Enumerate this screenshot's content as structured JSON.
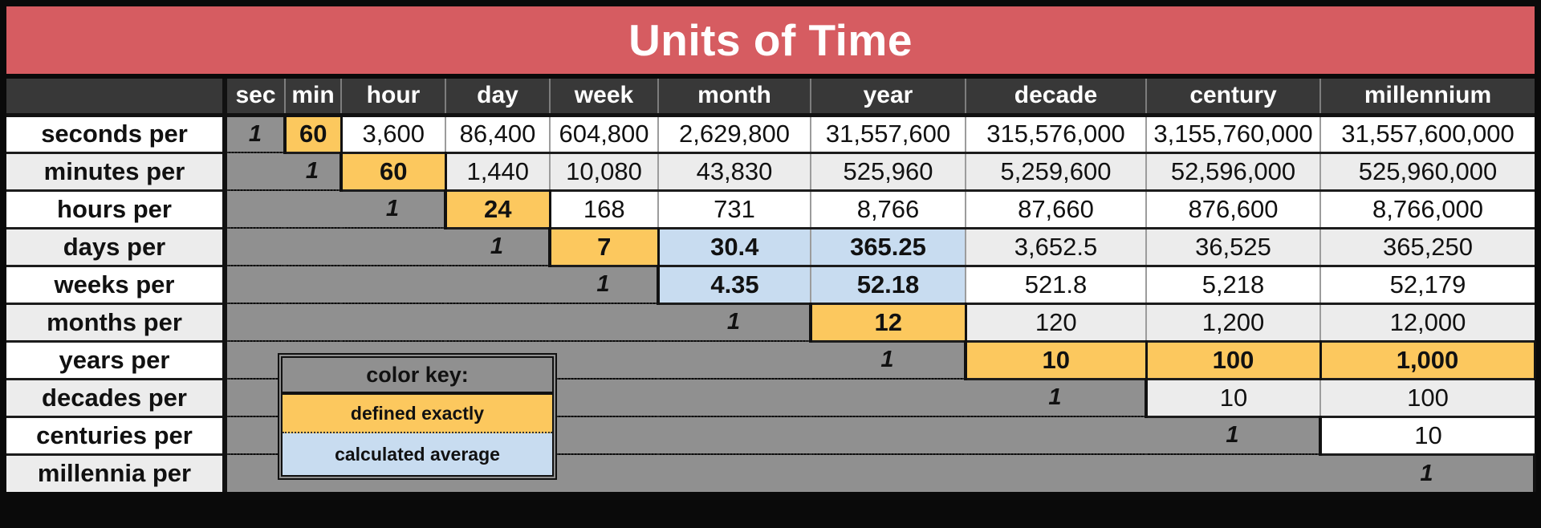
{
  "title": "Units of Time",
  "color_key": {
    "title": "color key:",
    "defined_label": "defined exactly",
    "calculated_label": "calculated average"
  },
  "colors": {
    "banner": "#d65c61",
    "header_bg": "#383838",
    "staircase_gray": "#909090",
    "defined_exactly": "#fcc85e",
    "calculated_average": "#c8dcf0",
    "alt_row": "#ececec"
  },
  "chart_data": {
    "type": "table",
    "title": "Units of Time",
    "columns": [
      "sec",
      "min",
      "hour",
      "day",
      "week",
      "month",
      "year",
      "decade",
      "century",
      "millennium"
    ],
    "legend": [
      {
        "label": "defined exactly",
        "color": "#fcc85e"
      },
      {
        "label": "calculated average",
        "color": "#c8dcf0"
      }
    ],
    "rows": [
      {
        "label": "seconds per",
        "cells": [
          {
            "k": "one",
            "v": "1"
          },
          {
            "k": "defined",
            "v": "60"
          },
          {
            "k": "plain",
            "v": "3,600"
          },
          {
            "k": "plain",
            "v": "86,400"
          },
          {
            "k": "plain",
            "v": "604,800"
          },
          {
            "k": "plain",
            "v": "2,629,800"
          },
          {
            "k": "plain",
            "v": "31,557,600"
          },
          {
            "k": "plain",
            "v": "315,576,000"
          },
          {
            "k": "plain",
            "v": "3,155,760,000"
          },
          {
            "k": "plain",
            "v": "31,557,600,000"
          }
        ]
      },
      {
        "label": "minutes per",
        "cells": [
          {
            "k": "gray"
          },
          {
            "k": "one",
            "v": "1"
          },
          {
            "k": "defined",
            "v": "60"
          },
          {
            "k": "plain",
            "v": "1,440"
          },
          {
            "k": "plain",
            "v": "10,080"
          },
          {
            "k": "plain",
            "v": "43,830"
          },
          {
            "k": "plain",
            "v": "525,960"
          },
          {
            "k": "plain",
            "v": "5,259,600"
          },
          {
            "k": "plain",
            "v": "52,596,000"
          },
          {
            "k": "plain",
            "v": "525,960,000"
          }
        ]
      },
      {
        "label": "hours per",
        "cells": [
          {
            "k": "gray"
          },
          {
            "k": "gray"
          },
          {
            "k": "one",
            "v": "1"
          },
          {
            "k": "defined",
            "v": "24"
          },
          {
            "k": "plain",
            "v": "168"
          },
          {
            "k": "plain",
            "v": "731"
          },
          {
            "k": "plain",
            "v": "8,766"
          },
          {
            "k": "plain",
            "v": "87,660"
          },
          {
            "k": "plain",
            "v": "876,600"
          },
          {
            "k": "plain",
            "v": "8,766,000"
          }
        ]
      },
      {
        "label": "days per",
        "cells": [
          {
            "k": "gray"
          },
          {
            "k": "gray"
          },
          {
            "k": "gray"
          },
          {
            "k": "one",
            "v": "1"
          },
          {
            "k": "defined",
            "v": "7"
          },
          {
            "k": "calc",
            "v": "30.4"
          },
          {
            "k": "calc",
            "v": "365.25"
          },
          {
            "k": "plain",
            "v": "3,652.5"
          },
          {
            "k": "plain",
            "v": "36,525"
          },
          {
            "k": "plain",
            "v": "365,250"
          }
        ]
      },
      {
        "label": "weeks per",
        "cells": [
          {
            "k": "gray"
          },
          {
            "k": "gray"
          },
          {
            "k": "gray"
          },
          {
            "k": "gray"
          },
          {
            "k": "one",
            "v": "1"
          },
          {
            "k": "calc",
            "v": "4.35"
          },
          {
            "k": "calc",
            "v": "52.18"
          },
          {
            "k": "plain",
            "v": "521.8"
          },
          {
            "k": "plain",
            "v": "5,218"
          },
          {
            "k": "plain",
            "v": "52,179"
          }
        ]
      },
      {
        "label": "months per",
        "cells": [
          {
            "k": "gray"
          },
          {
            "k": "gray"
          },
          {
            "k": "gray"
          },
          {
            "k": "gray"
          },
          {
            "k": "gray"
          },
          {
            "k": "one",
            "v": "1"
          },
          {
            "k": "defined",
            "v": "12"
          },
          {
            "k": "plain",
            "v": "120"
          },
          {
            "k": "plain",
            "v": "1,200"
          },
          {
            "k": "plain",
            "v": "12,000"
          }
        ]
      },
      {
        "label": "years per",
        "cells": [
          {
            "k": "gray"
          },
          {
            "k": "gray"
          },
          {
            "k": "gray"
          },
          {
            "k": "gray"
          },
          {
            "k": "gray"
          },
          {
            "k": "gray"
          },
          {
            "k": "one",
            "v": "1"
          },
          {
            "k": "defined",
            "v": "10"
          },
          {
            "k": "defined",
            "v": "100"
          },
          {
            "k": "defined",
            "v": "1,000"
          }
        ]
      },
      {
        "label": "decades per",
        "cells": [
          {
            "k": "gray"
          },
          {
            "k": "gray"
          },
          {
            "k": "gray"
          },
          {
            "k": "gray"
          },
          {
            "k": "gray"
          },
          {
            "k": "gray"
          },
          {
            "k": "gray"
          },
          {
            "k": "one",
            "v": "1"
          },
          {
            "k": "plain",
            "v": "10"
          },
          {
            "k": "plain",
            "v": "100"
          }
        ]
      },
      {
        "label": "centuries per",
        "cells": [
          {
            "k": "gray"
          },
          {
            "k": "gray"
          },
          {
            "k": "gray"
          },
          {
            "k": "gray"
          },
          {
            "k": "gray"
          },
          {
            "k": "gray"
          },
          {
            "k": "gray"
          },
          {
            "k": "gray"
          },
          {
            "k": "one",
            "v": "1"
          },
          {
            "k": "plain",
            "v": "10"
          }
        ]
      },
      {
        "label": "millennia per",
        "cells": [
          {
            "k": "gray"
          },
          {
            "k": "gray"
          },
          {
            "k": "gray"
          },
          {
            "k": "gray"
          },
          {
            "k": "gray"
          },
          {
            "k": "gray"
          },
          {
            "k": "gray"
          },
          {
            "k": "gray"
          },
          {
            "k": "gray"
          },
          {
            "k": "one",
            "v": "1"
          }
        ]
      }
    ]
  }
}
